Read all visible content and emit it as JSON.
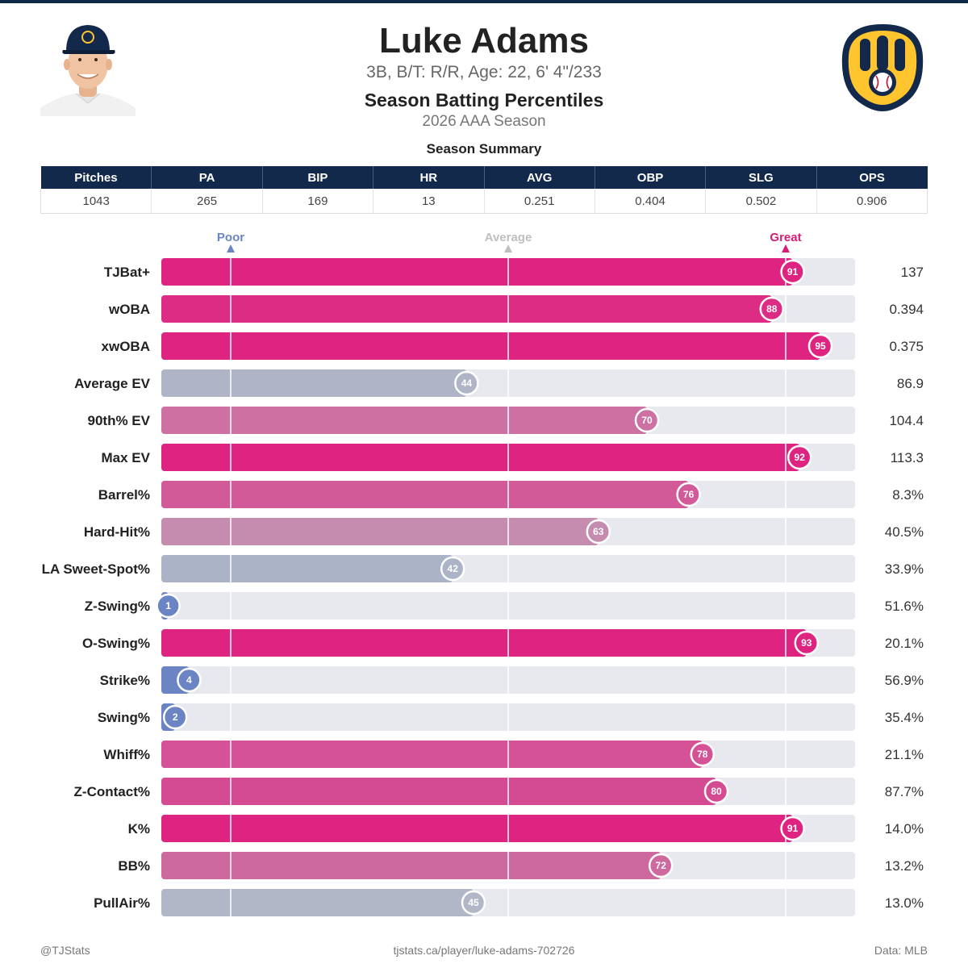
{
  "header": {
    "player_name": "Luke Adams",
    "player_bio": "3B, B/T: R/R, Age: 22, 6' 4\"/233",
    "chart_title": "Season Batting Percentiles",
    "season_label": "2026 AAA Season",
    "team_logo_icon": "brewers-ball-in-glove-logo",
    "headshot_icon": "player-headshot"
  },
  "summary": {
    "title": "Season Summary",
    "columns": [
      "Pitches",
      "PA",
      "BIP",
      "HR",
      "AVG",
      "OBP",
      "SLG",
      "OPS"
    ],
    "values": [
      "1043",
      "265",
      "169",
      "13",
      "0.251",
      "0.404",
      "0.502",
      "0.906"
    ]
  },
  "chart_data": {
    "type": "bar",
    "orientation": "horizontal",
    "xlim": [
      0,
      100
    ],
    "markers": [
      {
        "label": "Poor",
        "value": 10,
        "color": "#6b85c4"
      },
      {
        "label": "Average",
        "value": 50,
        "color": "#bfbfbf"
      },
      {
        "label": "Great",
        "value": 90,
        "color": "#d81b73"
      }
    ],
    "categories": [
      "TJBat+",
      "wOBA",
      "xwOBA",
      "Average EV",
      "90th% EV",
      "Max EV",
      "Barrel%",
      "Hard-Hit%",
      "LA Sweet-Spot%",
      "Z-Swing%",
      "O-Swing%",
      "Strike%",
      "Swing%",
      "Whiff%",
      "Z-Contact%",
      "K%",
      "BB%",
      "PullAir%"
    ],
    "percentiles": [
      91,
      88,
      95,
      44,
      70,
      92,
      76,
      63,
      42,
      1,
      93,
      4,
      2,
      78,
      80,
      91,
      72,
      45
    ],
    "stat_values": [
      "137",
      "0.394",
      "0.375",
      "86.9",
      "104.4",
      "113.3",
      "8.3%",
      "40.5%",
      "33.9%",
      "51.6%",
      "20.1%",
      "56.9%",
      "35.4%",
      "21.1%",
      "87.7%",
      "14.0%",
      "13.2%",
      "13.0%"
    ],
    "colors": {
      "poor": "#6b85c4",
      "average": "#bbbec6",
      "great": "#de2480",
      "track": "#e8e9ee"
    }
  },
  "footer": {
    "left": "@TJStats",
    "center": "tjstats.ca/player/luke-adams-702726",
    "right": "Data: MLB"
  }
}
